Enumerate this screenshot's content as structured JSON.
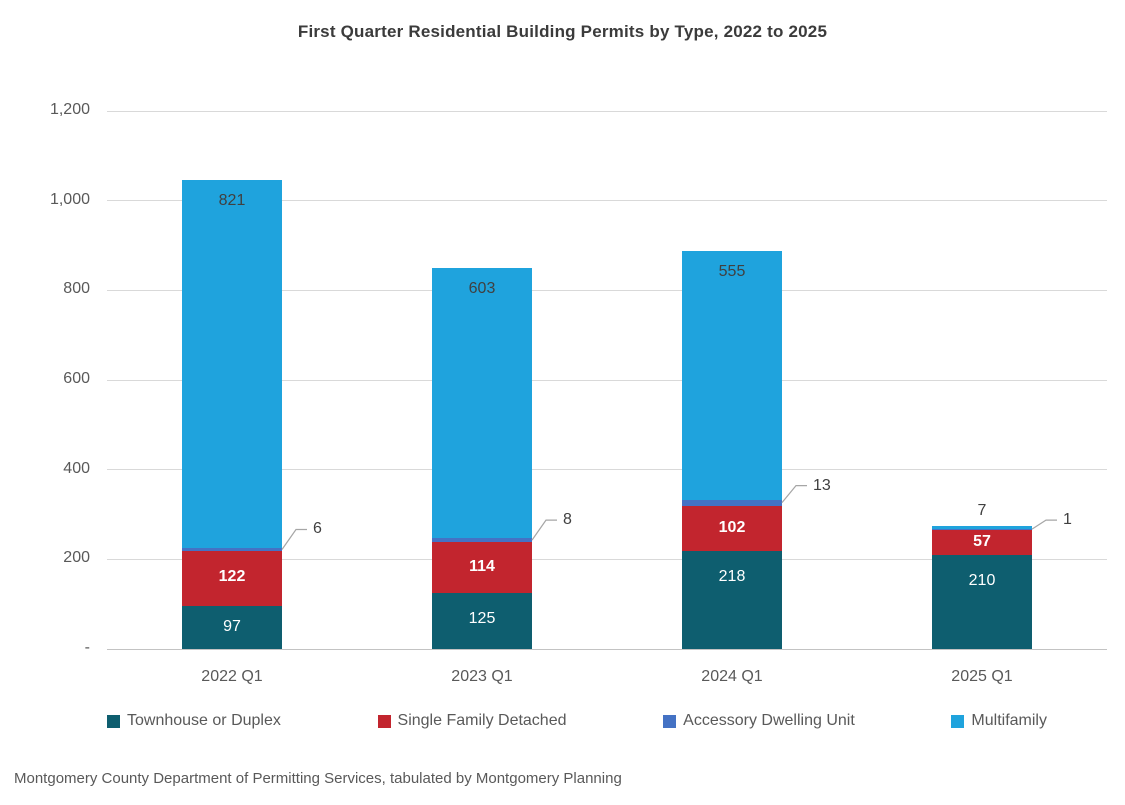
{
  "title": "First Quarter Residential Building Permits by Type, 2022 to 2025",
  "source": "Montgomery County Department of Permitting Services, tabulated by Montgomery Planning",
  "colors": {
    "townhouse": "#0e5e6f",
    "single_family": "#c2252e",
    "adu": "#4472c4",
    "multifamily": "#1fa3dd",
    "axis_text": "#595959",
    "gridline": "#d9d9d9",
    "callout_line": "#a6a6a6",
    "title_text": "#3b3b3b"
  },
  "chart_data": {
    "type": "bar",
    "stacked": true,
    "title": "First Quarter Residential Building Permits by Type, 2022 to 2025",
    "categories": [
      "2022 Q1",
      "2023 Q1",
      "2024 Q1",
      "2025 Q1"
    ],
    "series": [
      {
        "name": "Townhouse or Duplex",
        "color": "#0e5e6f",
        "values": [
          97,
          125,
          218,
          210
        ],
        "label_style": "inside-white"
      },
      {
        "name": "Single Family Detached",
        "color": "#c2252e",
        "values": [
          122,
          114,
          102,
          57
        ],
        "label_style": "inside-white-bold"
      },
      {
        "name": "Accessory Dwelling Unit",
        "color": "#4472c4",
        "values": [
          6,
          8,
          13,
          1
        ],
        "label_style": "callout"
      },
      {
        "name": "Multifamily",
        "color": "#1fa3dd",
        "values": [
          821,
          603,
          555,
          7
        ],
        "label_style": "inside-top-dark"
      }
    ],
    "totals": [
      1046,
      850,
      888,
      275
    ],
    "xlabel": "",
    "ylabel": "",
    "ylim": [
      0,
      1200
    ],
    "ytick_interval": 200,
    "ytick_labels": [
      "-",
      "200",
      "400",
      "600",
      "800",
      "1,000",
      "1,200"
    ],
    "grid": true,
    "legend_position": "bottom"
  }
}
